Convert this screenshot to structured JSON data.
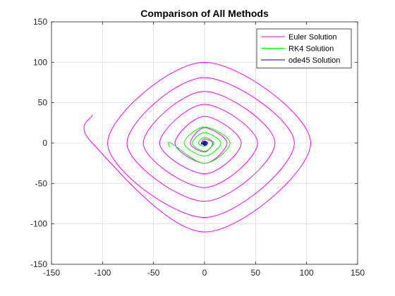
{
  "chart_data": {
    "type": "line",
    "title": "Comparison of All Methods",
    "xlabel": "",
    "ylabel": "",
    "xlim": [
      -150,
      150
    ],
    "ylim": [
      -150,
      150
    ],
    "xticks": [
      -150,
      -100,
      -50,
      0,
      50,
      100,
      150
    ],
    "yticks": [
      -150,
      -100,
      -50,
      0,
      50,
      100,
      150
    ],
    "grid": true,
    "legend_position": "top-right",
    "series": [
      {
        "name": "Euler Solution",
        "color": "#ff00ff",
        "kind": "spiral",
        "points": [
          [
            -110,
            35
          ],
          [
            -110,
            0
          ],
          [
            0,
            -110
          ],
          [
            104,
            0
          ],
          [
            0,
            100
          ],
          [
            -95,
            0
          ],
          [
            0,
            -92
          ],
          [
            88,
            0
          ],
          [
            0,
            81
          ],
          [
            -76,
            0
          ],
          [
            0,
            -72
          ],
          [
            69,
            0
          ],
          [
            0,
            64
          ],
          [
            -60,
            0
          ],
          [
            0,
            -55
          ],
          [
            52,
            0
          ],
          [
            0,
            48
          ],
          [
            -44,
            0
          ],
          [
            0,
            -38
          ],
          [
            36,
            0
          ],
          [
            0,
            33
          ],
          [
            -29,
            0
          ],
          [
            0,
            -25
          ],
          [
            22,
            0
          ],
          [
            0,
            19
          ],
          [
            -14,
            0
          ],
          [
            0,
            -11
          ],
          [
            8,
            0
          ],
          [
            0,
            5
          ],
          [
            -3,
            0
          ],
          [
            0,
            -1
          ]
        ]
      },
      {
        "name": "RK4 Solution",
        "color": "#00ff00",
        "kind": "spiral",
        "points": [
          [
            -34,
            -5
          ],
          [
            -33,
            0
          ],
          [
            0,
            -25
          ],
          [
            25,
            0
          ],
          [
            0,
            20
          ],
          [
            -20,
            0
          ],
          [
            0,
            -16
          ],
          [
            16,
            0
          ],
          [
            0,
            13
          ],
          [
            -12,
            0
          ],
          [
            0,
            -10
          ],
          [
            9,
            0
          ],
          [
            0,
            7
          ],
          [
            -6,
            0
          ],
          [
            0,
            -4
          ],
          [
            3,
            0
          ],
          [
            0,
            2
          ],
          [
            -1,
            0
          ]
        ]
      },
      {
        "name": "ode45 Solution",
        "color": "#0000aa",
        "kind": "spiral",
        "points": [
          [
            -3,
            -2
          ],
          [
            -3,
            0
          ],
          [
            0,
            -3
          ],
          [
            3,
            0
          ],
          [
            0,
            2.5
          ],
          [
            -2.5,
            0
          ],
          [
            0,
            -2
          ],
          [
            2,
            0
          ],
          [
            0,
            1.5
          ],
          [
            -1.5,
            0
          ],
          [
            0,
            -1
          ],
          [
            1,
            0
          ],
          [
            0,
            0.6
          ],
          [
            -0.6,
            0
          ],
          [
            0,
            -0.3
          ],
          [
            0.2,
            0
          ]
        ]
      }
    ]
  }
}
